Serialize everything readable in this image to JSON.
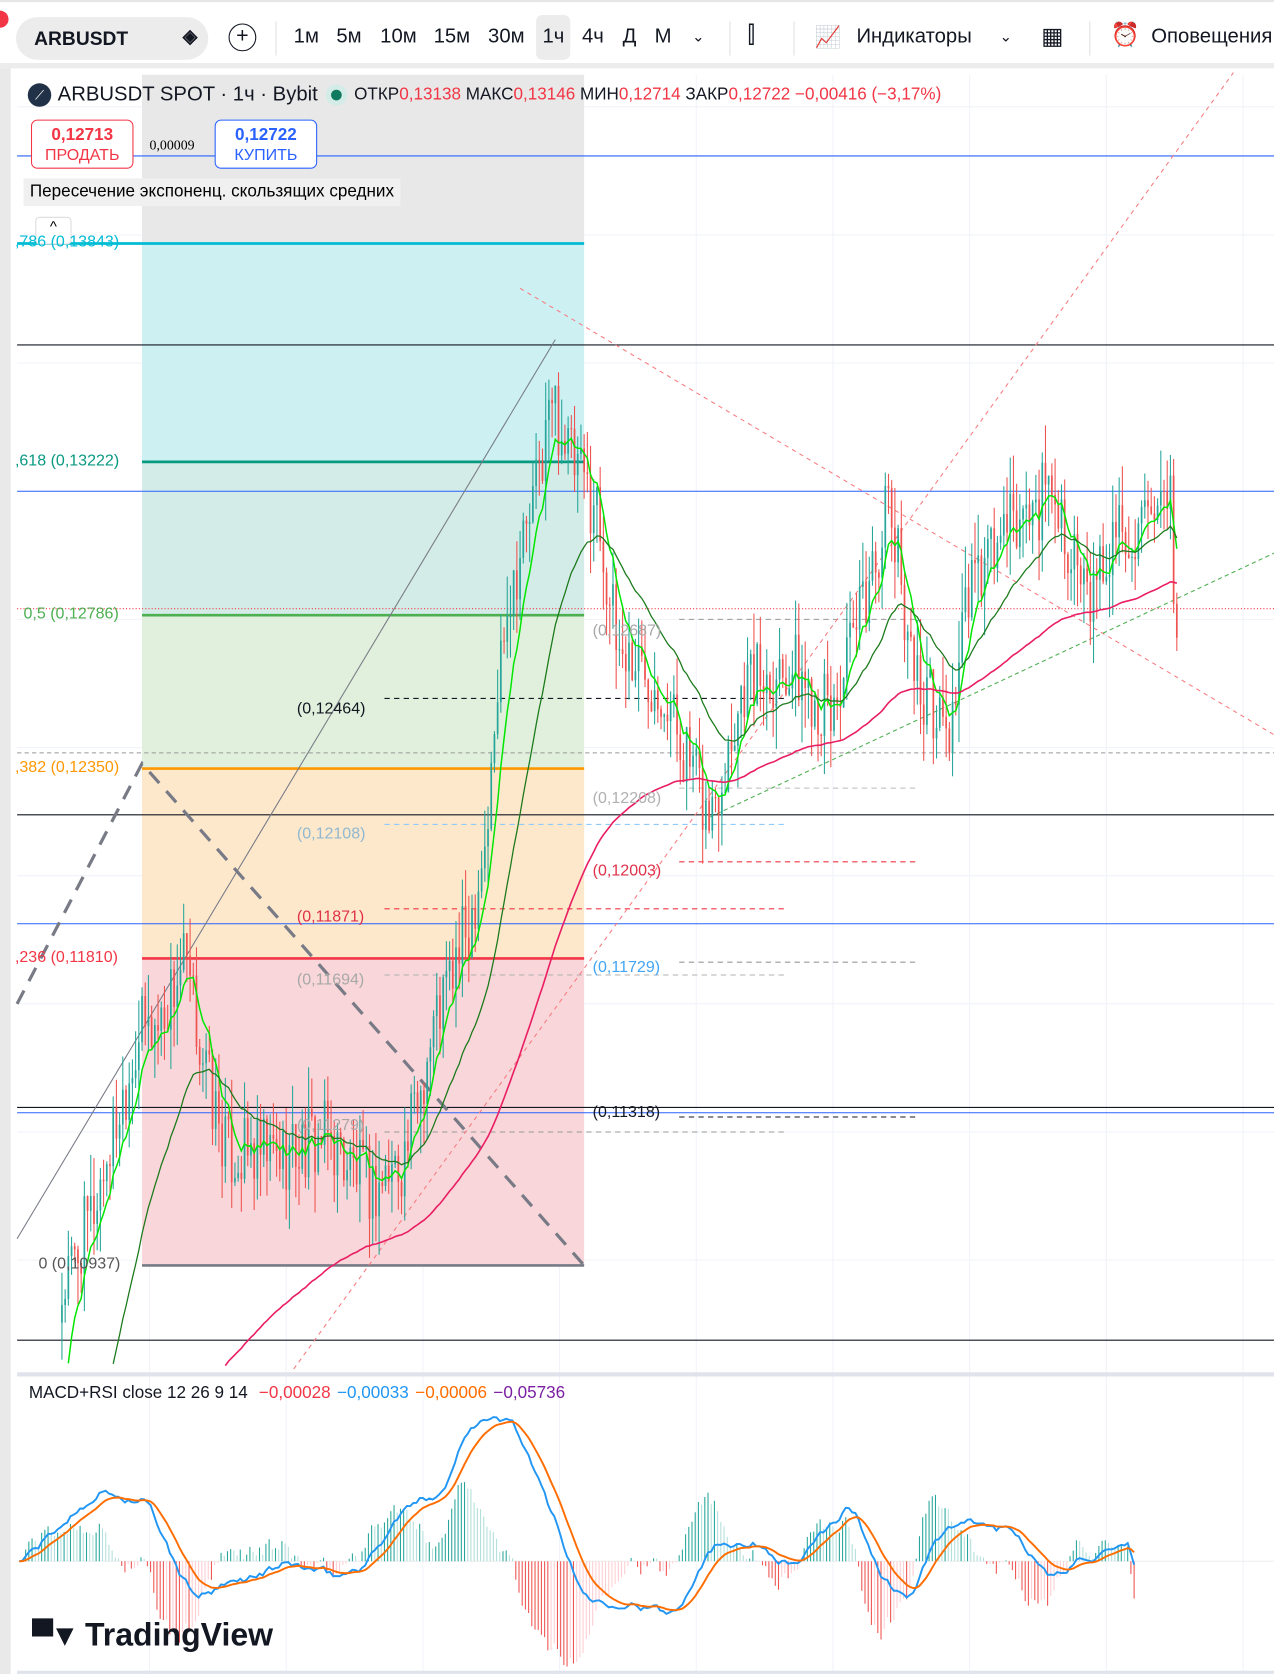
{
  "toolbar": {
    "symbol": "ARBUSDT",
    "timeframes": [
      "1м",
      "5м",
      "10м",
      "15м",
      "30м",
      "1ч",
      "4ч",
      "Д",
      "М"
    ],
    "active_timeframe": "1ч",
    "indicators_label": "Индикаторы",
    "alerts_label": "Оповещения",
    "icons": [
      "diamond-icon",
      "plus-circle-icon",
      "candles-icon",
      "indicators-icon",
      "chevron-down-icon",
      "layout-grid-icon",
      "alarm-clock-icon"
    ]
  },
  "legend": {
    "title": "ARBUSDT SPOT · 1ч · Bybit",
    "open_label": "ОТКР",
    "open": "0,13138",
    "high_label": "МАКС",
    "high": "0,13146",
    "low_label": "МИН",
    "low": "0,12714",
    "close_label": "ЗАКР",
    "close": "0,12722",
    "change": "−0,00416 (−3,17%)"
  },
  "trade": {
    "sell_price": "0,12713",
    "sell_label": "ПРОДАТЬ",
    "spread": "0,00009",
    "buy_price": "0,12722",
    "buy_label": "КУПИТЬ"
  },
  "indicator_label": "Пересечение экспоненц. скользящих средних",
  "fib_levels": [
    {
      "label": ",786 (0,13843)",
      "price": 0.13843,
      "color": "#00bcd4",
      "fill": "#cdf0f3"
    },
    {
      "label": ",618 (0,13222)",
      "price": 0.13222,
      "color": "#089981",
      "fill": "#d4ece7"
    },
    {
      "label": "0,5 (0,12786)",
      "price": 0.12786,
      "color": "#4caf50",
      "fill": "#e0f0dc"
    },
    {
      "label": ",382 (0,12350)",
      "price": 0.1235,
      "color": "#ff9800",
      "fill": "#fde8cc"
    },
    {
      "label": ",236 (0,11810)",
      "price": 0.1181,
      "color": "#f23645",
      "fill": "#f9d6d9"
    },
    {
      "label": "0 (0,10937)",
      "price": 0.10937,
      "color": "#787b86",
      "fill": ""
    }
  ],
  "price_labels": [
    {
      "text": "(0,12464)",
      "price": 0.12464,
      "color": "#131722"
    },
    {
      "text": "(0,12108)",
      "price": 0.12108,
      "color": "#90b8d0"
    },
    {
      "text": "(0,11871)",
      "price": 0.11871,
      "color": "#e0314a"
    },
    {
      "text": "(0,11694)",
      "price": 0.11694,
      "color": "#a8a8a8"
    },
    {
      "text": "(0,11279)",
      "price": 0.11279,
      "color": "#a8a8a8"
    },
    {
      "text": "(0,12687)",
      "price": 0.12687,
      "color": "#a8a8a8"
    },
    {
      "text": "(0,12208)",
      "price": 0.12208,
      "color": "#b0b0b0"
    },
    {
      "text": "(0,12003)",
      "price": 0.12003,
      "color": "#e0314a"
    },
    {
      "text": "(0,11729)",
      "price": 0.11729,
      "color": "#42a5f5"
    },
    {
      "text": "(0,11318)",
      "price": 0.11318,
      "color": "#131722"
    }
  ],
  "macd": {
    "title": "MACD+RSI close 12 26 9 14",
    "values": [
      {
        "v": "−0,00028",
        "color": "#f23645"
      },
      {
        "v": "−0,00033",
        "color": "#2196f3"
      },
      {
        "v": "−0,00006",
        "color": "#ff6d00"
      },
      {
        "v": "−0,05736",
        "color": "#7b1fa2"
      }
    ]
  },
  "logo": "TradingView",
  "chart_data": {
    "type": "candlestick",
    "symbol": "ARBUSDT",
    "interval": "1h",
    "close_path": [
      [
        0,
        0.1085
      ],
      [
        10,
        0.111
      ],
      [
        24,
        0.116
      ],
      [
        30,
        0.1162
      ],
      [
        38,
        0.118
      ],
      [
        47,
        0.114
      ],
      [
        52,
        0.1125
      ],
      [
        67,
        0.1125
      ],
      [
        83,
        0.113
      ],
      [
        97,
        0.1115
      ],
      [
        107,
        0.1125
      ],
      [
        117,
        0.1165
      ],
      [
        127,
        0.119
      ],
      [
        133,
        0.122
      ],
      [
        138,
        0.128
      ],
      [
        147,
        0.131
      ],
      [
        153,
        0.134
      ],
      [
        160,
        0.132
      ],
      [
        167,
        0.131
      ],
      [
        173,
        0.127
      ],
      [
        187,
        0.126
      ],
      [
        202,
        0.122
      ],
      [
        213,
        0.126
      ],
      [
        227,
        0.1265
      ],
      [
        240,
        0.125
      ],
      [
        247,
        0.127
      ],
      [
        258,
        0.131
      ],
      [
        267,
        0.126
      ],
      [
        277,
        0.1245
      ],
      [
        283,
        0.1285
      ],
      [
        293,
        0.13
      ],
      [
        310,
        0.1315
      ],
      [
        320,
        0.128
      ],
      [
        330,
        0.1305
      ],
      [
        340,
        0.13
      ],
      [
        346,
        0.1308
      ],
      [
        348,
        0.1272
      ]
    ],
    "last_price": 0.12722
  }
}
